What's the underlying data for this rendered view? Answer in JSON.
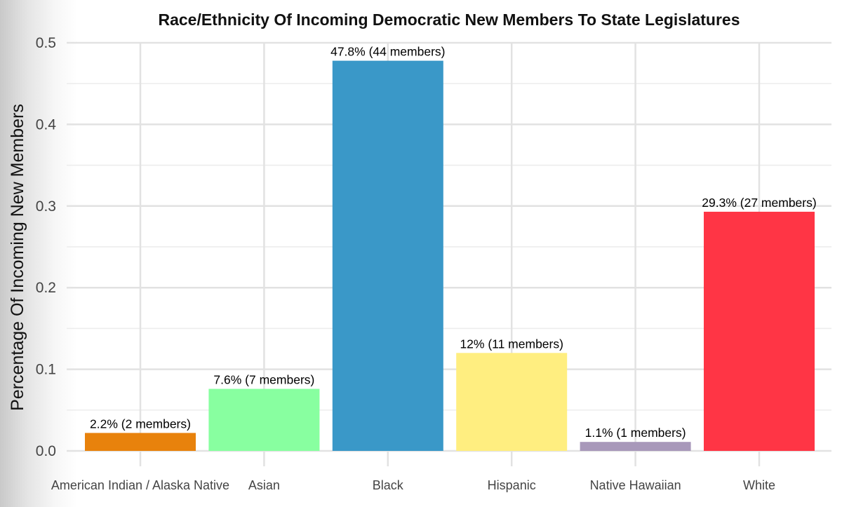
{
  "chart_data": {
    "type": "bar",
    "title": "Race/Ethnicity Of Incoming Democratic New Members To State Legislatures",
    "xlabel": "",
    "ylabel": "Percentage Of Incoming New Members",
    "ylim": [
      0,
      0.5
    ],
    "yticks": [
      "0.0",
      "0.1",
      "0.2",
      "0.3",
      "0.4",
      "0.5"
    ],
    "grid": true,
    "legend": "none",
    "categories": [
      "American Indian / Alaska Native",
      "Asian",
      "Black",
      "Hispanic",
      "Native Hawaiian",
      "White"
    ],
    "values": [
      0.022,
      0.076,
      0.478,
      0.12,
      0.011,
      0.293
    ],
    "labels": [
      "2.2% (2 members)",
      "7.6% (7 members)",
      "47.8% (44 members)",
      "12% (11 members)",
      "1.1% (1 members)",
      "29.3% (27 members)"
    ],
    "colors": [
      "#E8820C",
      "#88FFA0",
      "#3A98C8",
      "#FFEE80",
      "#A898BA",
      "#FF3545"
    ]
  }
}
